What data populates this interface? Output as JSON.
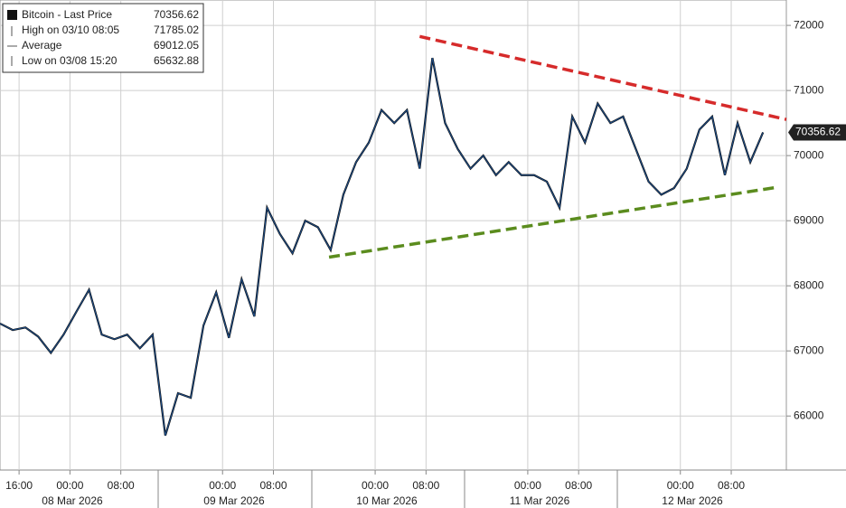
{
  "chart_data": {
    "type": "line",
    "legend_items": [
      {
        "label": "Bitcoin - Last Price",
        "value": 70356.62
      },
      {
        "label": "High on 03/10 08:05",
        "value": 71785.02
      },
      {
        "label": "Average",
        "value": 69012.05
      },
      {
        "label": "Low on 03/08 15:20",
        "value": 65632.88
      }
    ],
    "last_price": 70356.62,
    "x": [
      "2026-03-07 13:00",
      "2026-03-07 15:00",
      "2026-03-07 17:00",
      "2026-03-07 19:00",
      "2026-03-07 21:00",
      "2026-03-07 23:00",
      "2026-03-08 01:00",
      "2026-03-08 03:00",
      "2026-03-08 05:00",
      "2026-03-08 07:00",
      "2026-03-08 09:00",
      "2026-03-08 11:00",
      "2026-03-08 13:00",
      "2026-03-08 15:00",
      "2026-03-08 17:00",
      "2026-03-08 19:00",
      "2026-03-08 21:00",
      "2026-03-08 23:00",
      "2026-03-09 01:00",
      "2026-03-09 03:00",
      "2026-03-09 05:00",
      "2026-03-09 07:00",
      "2026-03-09 09:00",
      "2026-03-09 11:00",
      "2026-03-09 13:00",
      "2026-03-09 15:00",
      "2026-03-09 17:00",
      "2026-03-09 19:00",
      "2026-03-09 21:00",
      "2026-03-09 23:00",
      "2026-03-10 01:00",
      "2026-03-10 03:00",
      "2026-03-10 05:00",
      "2026-03-10 07:00",
      "2026-03-10 09:00",
      "2026-03-10 11:00",
      "2026-03-10 13:00",
      "2026-03-10 15:00",
      "2026-03-10 17:00",
      "2026-03-10 19:00",
      "2026-03-10 21:00",
      "2026-03-10 23:00",
      "2026-03-11 01:00",
      "2026-03-11 03:00",
      "2026-03-11 05:00",
      "2026-03-11 07:00",
      "2026-03-11 09:00",
      "2026-03-11 11:00",
      "2026-03-11 13:00",
      "2026-03-11 15:00",
      "2026-03-11 17:00",
      "2026-03-11 19:00",
      "2026-03-11 21:00",
      "2026-03-11 23:00",
      "2026-03-12 01:00",
      "2026-03-12 03:00",
      "2026-03-12 05:00",
      "2026-03-12 07:00",
      "2026-03-12 09:00",
      "2026-03-12 11:00",
      "2026-03-12 13:00"
    ],
    "series": [
      {
        "name": "Bitcoin - Last Price",
        "color": "#1c4e8c",
        "values": [
          67420,
          67320,
          67360,
          67220,
          66970,
          67250,
          67600,
          67940,
          67250,
          67180,
          67250,
          67040,
          67250,
          65700,
          66350,
          66280,
          67390,
          67900,
          67200,
          68100,
          67530,
          69200,
          68800,
          68500,
          69000,
          68900,
          68550,
          69400,
          69900,
          70200,
          70700,
          70500,
          70700,
          69800,
          71500,
          70500,
          70100,
          69800,
          70000,
          69700,
          69900,
          69700,
          69700,
          69600,
          69200,
          70600,
          70200,
          70800,
          70500,
          70600,
          70100,
          69600,
          69400,
          69500,
          69800,
          70400,
          70600,
          69700,
          70500,
          69900,
          70356.62
        ]
      }
    ],
    "trendlines": [
      {
        "color": "#d62b2b",
        "x": [
          "2026-03-10 07:00",
          "2026-03-12 16:40"
        ],
        "values": [
          71830,
          70555
        ]
      },
      {
        "color": "#5b8c1e",
        "x": [
          "2026-03-09 16:45",
          "2026-03-12 15:00"
        ],
        "values": [
          68440,
          69510
        ]
      }
    ],
    "xlim": [
      "2026-03-07 13:00",
      "2026-03-12 16:40"
    ],
    "xticks": [
      {
        "value": "2026-03-07 16:00",
        "label": "16:00"
      },
      {
        "value": "2026-03-08 00:00",
        "label": "00:00"
      },
      {
        "value": "2026-03-08 08:00",
        "label": "08:00"
      },
      {
        "value": "2026-03-09 00:00",
        "label": "00:00"
      },
      {
        "value": "2026-03-09 08:00",
        "label": "08:00"
      },
      {
        "value": "2026-03-10 00:00",
        "label": "00:00"
      },
      {
        "value": "2026-03-10 08:00",
        "label": "08:00"
      },
      {
        "value": "2026-03-11 00:00",
        "label": "00:00"
      },
      {
        "value": "2026-03-11 08:00",
        "label": "08:00"
      },
      {
        "value": "2026-03-12 00:00",
        "label": "00:00"
      },
      {
        "value": "2026-03-12 08:00",
        "label": "08:00"
      }
    ],
    "date_labels": [
      "08 Mar 2026",
      "09 Mar 2026",
      "10 Mar 2026",
      "11 Mar 2026",
      "12 Mar 2026"
    ],
    "ylim": [
      65170,
      72390
    ],
    "yticks": [
      66000,
      67000,
      68000,
      69000,
      70000,
      71000,
      72000
    ],
    "grid": true
  }
}
